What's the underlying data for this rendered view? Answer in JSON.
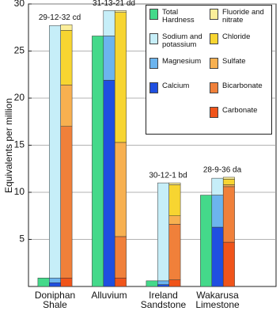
{
  "chart_data": {
    "type": "bar",
    "y_label": "Equivalents per million",
    "categories": [
      "Doniphan Shale",
      "Alluvium",
      "Ireland Sandstone",
      "Wakarusa Limestone"
    ],
    "well_labels": [
      "29-12-32 cd",
      "31-13-21 dd",
      "30-12-1 bd",
      "28-9-36 da"
    ],
    "ylim": [
      0,
      30
    ],
    "yticks": [
      5,
      10,
      15,
      20,
      25,
      30
    ],
    "grid": true,
    "series": [
      {
        "name": "Total Hardness",
        "color": "#44d98a",
        "stack": 0,
        "values": [
          0.9,
          26.6,
          0.6,
          9.7
        ]
      },
      {
        "name": "Sodium and potassium",
        "color": "#c6eef8",
        "stack": 1,
        "values": [
          26.8,
          2.7,
          10.4,
          1.8
        ]
      },
      {
        "name": "Magnesium",
        "color": "#6cb4ee",
        "stack": 1,
        "values": [
          0.5,
          4.7,
          0.4,
          3.4
        ]
      },
      {
        "name": "Calcium",
        "color": "#1f4fe0",
        "stack": 1,
        "values": [
          0.4,
          21.9,
          0.2,
          6.3
        ]
      },
      {
        "name": "Fluoride and nitrate",
        "color": "#fbee9a",
        "stack": 2,
        "values": [
          0.6,
          0.2,
          0.2,
          0.2
        ]
      },
      {
        "name": "Chloride",
        "color": "#f7d531",
        "stack": 2,
        "values": [
          5.8,
          13.8,
          3.3,
          0.6
        ]
      },
      {
        "name": "Sulfate",
        "color": "#f7b050",
        "stack": 2,
        "values": [
          4.4,
          10.0,
          0.9,
          0.2
        ]
      },
      {
        "name": "Bicarbonate",
        "color": "#f0803a",
        "stack": 2,
        "values": [
          16.1,
          4.4,
          5.9,
          5.9
        ]
      },
      {
        "name": "Carbonate",
        "color": "#f0541a",
        "stack": 2,
        "values": [
          0.9,
          0.9,
          0.7,
          4.7
        ]
      }
    ]
  }
}
